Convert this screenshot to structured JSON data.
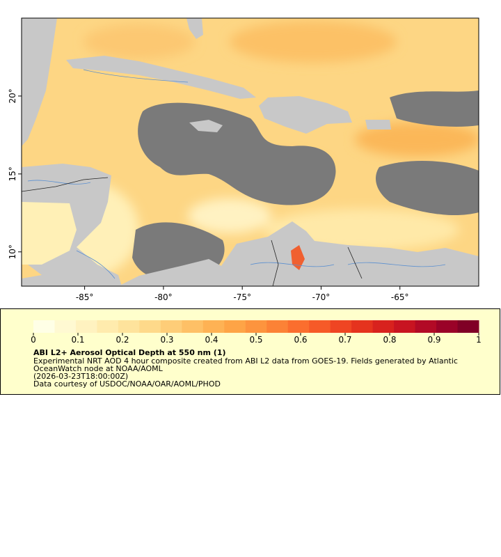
{
  "map": {
    "xlim": [
      -89,
      -60
    ],
    "ylim": [
      7.8,
      25
    ],
    "xticks": [
      {
        "value": -85,
        "label": "-85°"
      },
      {
        "value": -80,
        "label": "-80°"
      },
      {
        "value": -75,
        "label": "-75°"
      },
      {
        "value": -70,
        "label": "-70°"
      },
      {
        "value": -65,
        "label": "-65°"
      }
    ],
    "yticks": [
      {
        "value": 10,
        "label": "10°"
      },
      {
        "value": 15,
        "label": "15°"
      },
      {
        "value": 20,
        "label": "20°"
      }
    ]
  },
  "colorbar": {
    "lim": [
      0,
      1
    ],
    "ticks": [
      0,
      0.1,
      0.2,
      0.3,
      0.4,
      0.5,
      0.6,
      0.7,
      0.8,
      0.9,
      1
    ],
    "colors": [
      "#ffffe6",
      "#fff9d2",
      "#fff2c0",
      "#ffebad",
      "#fee39c",
      "#fed98a",
      "#fecd78",
      "#fec066",
      "#feb254",
      "#fea446",
      "#fd943e",
      "#fc8236",
      "#fb6e2e",
      "#f65a28",
      "#ef4523",
      "#e5331e",
      "#d8221e",
      "#c81421",
      "#b20a26",
      "#9a0228",
      "#800026"
    ],
    "title": "ABI L2+ Aerosol Optical Depth at 550 nm (1)",
    "lines": [
      "Experimental NRT AOD 4 hour composite created from ABI L2 data from GOES-19. Fields generated by Atlantic",
      "OceanWatch node at NOAA/AOML",
      "(2026-03-23T18:00:00Z)",
      "Data courtesy of USDOC/NOAA/OAR/AOML/PHOD"
    ]
  }
}
